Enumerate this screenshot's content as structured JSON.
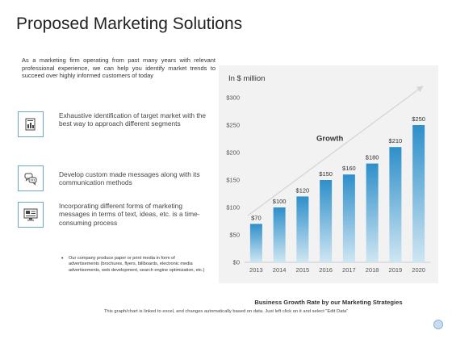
{
  "page": {
    "title": "Proposed Marketing Solutions",
    "intro": "As a marketing firm operating from past many years with relevant professional experience, we can help you identify market trends to succeed over highly informed customers of today",
    "features": [
      {
        "icon": "report-chart-icon",
        "text": "Exhaustive identification of target market with the best way to approach different segments"
      },
      {
        "icon": "chat-bubbles-icon",
        "text": "Develop custom made messages along with its communication methods"
      },
      {
        "icon": "multimedia-monitor-icon",
        "text": "Incorporating different forms of marketing messages in terms of text, ideas, etc. is a time-consuming process"
      }
    ],
    "bullet": "Our company produce paper or print media in form of advertisements (brochures, flyers, billboards, electronic media advertisements, web development, search engine optimization, etc.)",
    "footer": "This graph/chart is linked to excel, and changes automatically based on data. Just left click on it and select “Edit Data”"
  },
  "chart_data": {
    "type": "bar",
    "unit_label": "In $ million",
    "categories": [
      "2013",
      "2014",
      "2015",
      "2016",
      "2017",
      "2018",
      "2019",
      "2020"
    ],
    "values": [
      70,
      100,
      120,
      150,
      160,
      180,
      210,
      250
    ],
    "value_labels": [
      "$70",
      "$100",
      "$120",
      "$150",
      "$160",
      "$180",
      "$210",
      "$250"
    ],
    "yticks": [
      0,
      50,
      100,
      150,
      200,
      250,
      300
    ],
    "ytick_labels": [
      "$0",
      "$50",
      "$100",
      "$150",
      "$200",
      "$250",
      "$300"
    ],
    "ylim": [
      0,
      300
    ],
    "annotation": "Growth",
    "caption": "Business Growth Rate by our Marketing Strategies",
    "grid": false,
    "colors": {
      "bar_top": "#2e8fc9",
      "bar_bottom": "#cfe6f3",
      "panel": "#f2f2f2",
      "arrow": "#d5d5d5"
    }
  }
}
